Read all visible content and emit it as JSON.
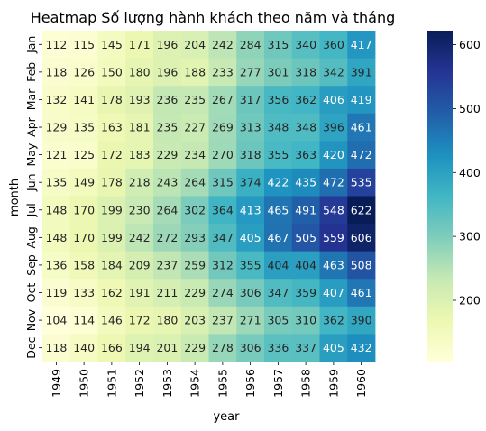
{
  "chart_data": {
    "type": "heatmap",
    "title": "Heatmap Số lượng hành khách theo năm và tháng",
    "xlabel": "year",
    "ylabel": "month",
    "x": [
      "1949",
      "1950",
      "1951",
      "1952",
      "1953",
      "1954",
      "1955",
      "1956",
      "1957",
      "1958",
      "1959",
      "1960"
    ],
    "y": [
      "Jan",
      "Feb",
      "Mar",
      "Apr",
      "May",
      "Jun",
      "Jul",
      "Aug",
      "Sep",
      "Oct",
      "Nov",
      "Dec"
    ],
    "values": [
      [
        112,
        115,
        145,
        171,
        196,
        204,
        242,
        284,
        315,
        340,
        360,
        417
      ],
      [
        118,
        126,
        150,
        180,
        196,
        188,
        233,
        277,
        301,
        318,
        342,
        391
      ],
      [
        132,
        141,
        178,
        193,
        236,
        235,
        267,
        317,
        356,
        362,
        406,
        419
      ],
      [
        129,
        135,
        163,
        181,
        235,
        227,
        269,
        313,
        348,
        348,
        396,
        461
      ],
      [
        121,
        125,
        172,
        183,
        229,
        234,
        270,
        318,
        355,
        363,
        420,
        472
      ],
      [
        135,
        149,
        178,
        218,
        243,
        264,
        315,
        374,
        422,
        435,
        472,
        535
      ],
      [
        148,
        170,
        199,
        230,
        264,
        302,
        364,
        413,
        465,
        491,
        548,
        622
      ],
      [
        148,
        170,
        199,
        242,
        272,
        293,
        347,
        405,
        467,
        505,
        559,
        606
      ],
      [
        136,
        158,
        184,
        209,
        237,
        259,
        312,
        355,
        404,
        404,
        463,
        508
      ],
      [
        119,
        133,
        162,
        191,
        211,
        229,
        274,
        306,
        347,
        359,
        407,
        461
      ],
      [
        104,
        114,
        146,
        172,
        180,
        203,
        237,
        271,
        305,
        310,
        362,
        390
      ],
      [
        118,
        140,
        166,
        194,
        201,
        229,
        278,
        306,
        336,
        337,
        405,
        432
      ]
    ],
    "colormap": "YlGnBu",
    "value_range": [
      104,
      622
    ],
    "colorbar_ticks": [
      200,
      300,
      400,
      500,
      600
    ],
    "annotated": true
  }
}
